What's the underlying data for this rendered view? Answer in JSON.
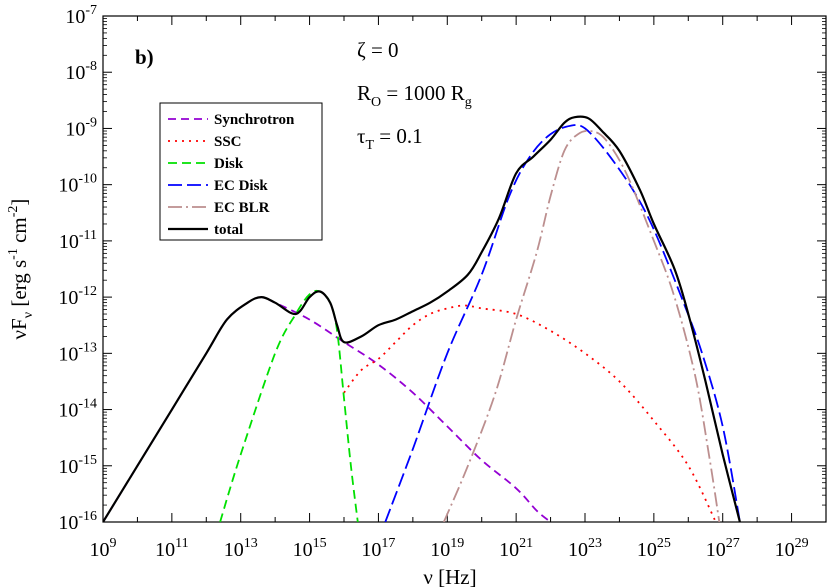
{
  "chart_data": {
    "type": "line",
    "panel_label": "b)",
    "xlabel": "ν [Hz]",
    "ylabel": {
      "prefix": "νF",
      "sub": "ν",
      "unit_open": " [erg s",
      "exp1": "-1",
      "unit_mid": " cm",
      "exp2": "-2",
      "unit_close": "]"
    },
    "x_log_range": [
      9,
      30
    ],
    "y_log_range": [
      -16,
      -7
    ],
    "x_tick_exponents": [
      9,
      11,
      13,
      15,
      17,
      19,
      21,
      23,
      25,
      27,
      29
    ],
    "y_tick_exponents": [
      -16,
      -15,
      -14,
      -13,
      -12,
      -11,
      -10,
      -9,
      -8,
      -7
    ],
    "tick_base": "10",
    "annotations": [
      {
        "text": "ζ = 0"
      },
      {
        "text": "R",
        "sub": "O",
        "rest": " = 1000 R",
        "sub2": "g"
      },
      {
        "text": "τ",
        "sub": "T",
        "rest": " = 0.1"
      }
    ],
    "series": [
      {
        "name": "Synchrotron",
        "color": "#9400d3",
        "dash": "8,5",
        "points": [
          [
            9,
            -16
          ],
          [
            10,
            -15
          ],
          [
            11,
            -14
          ],
          [
            12,
            -13
          ],
          [
            12.6,
            -12.4
          ],
          [
            13.2,
            -12.1
          ],
          [
            13.6,
            -12
          ],
          [
            14,
            -12.1
          ],
          [
            15,
            -12.4
          ],
          [
            16,
            -12.8
          ],
          [
            17,
            -13.2
          ],
          [
            18,
            -13.7
          ],
          [
            19,
            -14.3
          ],
          [
            20,
            -14.9
          ],
          [
            21,
            -15.4
          ],
          [
            21.6,
            -15.8
          ],
          [
            22,
            -16
          ]
        ]
      },
      {
        "name": "SSC",
        "color": "#ff0000",
        "dash": "2,5",
        "points": [
          [
            16,
            -13.7
          ],
          [
            16.5,
            -13.3
          ],
          [
            17,
            -13.1
          ],
          [
            17.5,
            -12.8
          ],
          [
            18,
            -12.5
          ],
          [
            18.5,
            -12.3
          ],
          [
            19,
            -12.2
          ],
          [
            19.5,
            -12.15
          ],
          [
            20,
            -12.2
          ],
          [
            21,
            -12.3
          ],
          [
            22,
            -12.6
          ],
          [
            23,
            -13.0
          ],
          [
            24,
            -13.5
          ],
          [
            25,
            -14.2
          ],
          [
            26,
            -15.0
          ],
          [
            26.8,
            -16
          ]
        ]
      },
      {
        "name": "Disk",
        "color": "#00e000",
        "dash": "9,5",
        "points": [
          [
            12.4,
            -16
          ],
          [
            13,
            -14.8
          ],
          [
            14,
            -13
          ],
          [
            14.6,
            -12.3
          ],
          [
            15,
            -11.95
          ],
          [
            15.3,
            -11.9
          ],
          [
            15.6,
            -12.1
          ],
          [
            15.8,
            -12.6
          ],
          [
            16,
            -13.8
          ],
          [
            16.2,
            -15.0
          ],
          [
            16.4,
            -16
          ]
        ]
      },
      {
        "name": "EC Disk",
        "color": "#0000ff",
        "dash": "14,5",
        "points": [
          [
            17.2,
            -16
          ],
          [
            18,
            -14.7
          ],
          [
            19,
            -13
          ],
          [
            20,
            -11.6
          ],
          [
            20.8,
            -10.2
          ],
          [
            21.4,
            -9.5
          ],
          [
            22,
            -9.1
          ],
          [
            22.6,
            -8.95
          ],
          [
            23,
            -9.0
          ],
          [
            23.6,
            -9.4
          ],
          [
            24.4,
            -10.1
          ],
          [
            25,
            -10.8
          ],
          [
            25.8,
            -12
          ],
          [
            26.4,
            -13
          ],
          [
            27,
            -14.3
          ],
          [
            27.5,
            -16
          ]
        ]
      },
      {
        "name": "EC BLR",
        "color": "#bc8f8f",
        "dash": "14,4,2,4",
        "points": [
          [
            18.9,
            -16
          ],
          [
            19.6,
            -15
          ],
          [
            20.4,
            -13.7
          ],
          [
            21,
            -12.4
          ],
          [
            21.6,
            -11.2
          ],
          [
            22,
            -10.2
          ],
          [
            22.4,
            -9.4
          ],
          [
            22.8,
            -9.1
          ],
          [
            23.2,
            -9.05
          ],
          [
            23.6,
            -9.2
          ],
          [
            24.2,
            -9.8
          ],
          [
            25,
            -11
          ],
          [
            25.6,
            -12
          ],
          [
            26.2,
            -13.4
          ],
          [
            26.6,
            -14.8
          ],
          [
            26.9,
            -16
          ]
        ]
      },
      {
        "name": "total",
        "color": "#000000",
        "dash": "",
        "points": [
          [
            9,
            -16
          ],
          [
            10,
            -15
          ],
          [
            11,
            -14
          ],
          [
            12,
            -13
          ],
          [
            12.6,
            -12.4
          ],
          [
            13.2,
            -12.1
          ],
          [
            13.6,
            -12
          ],
          [
            14,
            -12.1
          ],
          [
            14.6,
            -12.3
          ],
          [
            15,
            -12
          ],
          [
            15.3,
            -11.9
          ],
          [
            15.6,
            -12.1
          ],
          [
            15.8,
            -12.5
          ],
          [
            16,
            -12.8
          ],
          [
            16.5,
            -12.7
          ],
          [
            17,
            -12.5
          ],
          [
            17.5,
            -12.4
          ],
          [
            18,
            -12.25
          ],
          [
            18.5,
            -12.1
          ],
          [
            19,
            -11.9
          ],
          [
            19.6,
            -11.6
          ],
          [
            20,
            -11.2
          ],
          [
            20.5,
            -10.6
          ],
          [
            21,
            -9.8
          ],
          [
            21.5,
            -9.5
          ],
          [
            22,
            -9.2
          ],
          [
            22.4,
            -8.9
          ],
          [
            22.7,
            -8.8
          ],
          [
            23.1,
            -8.82
          ],
          [
            23.5,
            -9.05
          ],
          [
            24,
            -9.4
          ],
          [
            24.6,
            -10.1
          ],
          [
            25,
            -10.7
          ],
          [
            25.6,
            -11.5
          ],
          [
            26,
            -12.3
          ],
          [
            26.5,
            -13.5
          ],
          [
            27,
            -14.8
          ],
          [
            27.5,
            -16
          ]
        ]
      }
    ]
  }
}
